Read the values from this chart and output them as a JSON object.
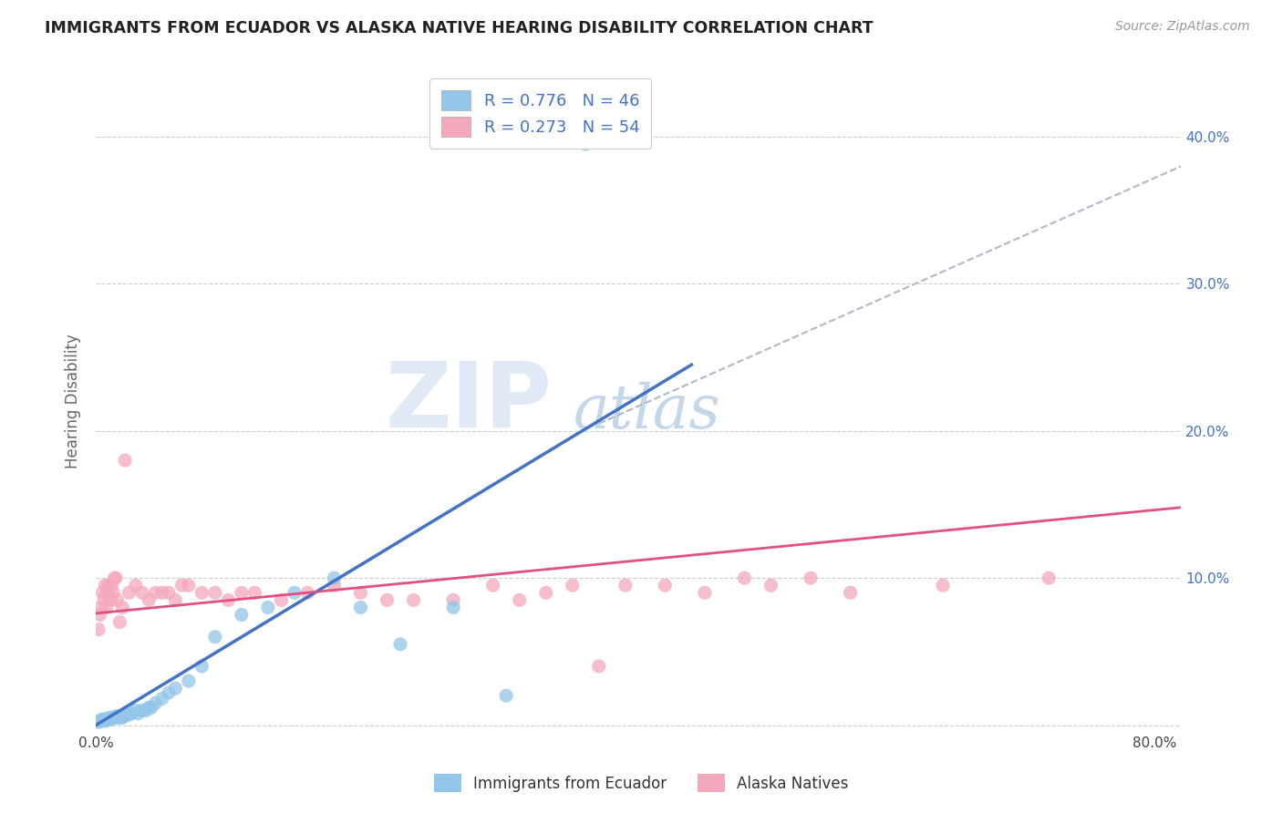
{
  "title": "IMMIGRANTS FROM ECUADOR VS ALASKA NATIVE HEARING DISABILITY CORRELATION CHART",
  "source": "Source: ZipAtlas.com",
  "ylabel": "Hearing Disability",
  "legend1_label": "R = 0.776   N = 46",
  "legend2_label": "R = 0.273   N = 54",
  "legend_bottom1": "Immigrants from Ecuador",
  "legend_bottom2": "Alaska Natives",
  "blue_color": "#93c6e8",
  "pink_color": "#f4a8bb",
  "blue_line_color": "#4472c4",
  "pink_line_color": "#e05080",
  "dashed_line_color": "#b0b8c8",
  "watermark_zip": "ZIP",
  "watermark_atlas": "atlas",
  "xlim": [
    0.0,
    0.82
  ],
  "ylim": [
    -0.005,
    0.445
  ],
  "blue_scatter_x": [
    0.002,
    0.003,
    0.004,
    0.005,
    0.006,
    0.007,
    0.008,
    0.009,
    0.01,
    0.01,
    0.011,
    0.012,
    0.013,
    0.014,
    0.015,
    0.016,
    0.017,
    0.018,
    0.019,
    0.02,
    0.021,
    0.022,
    0.025,
    0.027,
    0.03,
    0.032,
    0.035,
    0.038,
    0.04,
    0.042,
    0.045,
    0.05,
    0.055,
    0.06,
    0.07,
    0.08,
    0.09,
    0.11,
    0.13,
    0.15,
    0.18,
    0.2,
    0.23,
    0.27,
    0.31,
    0.37
  ],
  "blue_scatter_y": [
    0.002,
    0.003,
    0.003,
    0.004,
    0.003,
    0.004,
    0.003,
    0.004,
    0.005,
    0.004,
    0.004,
    0.005,
    0.005,
    0.005,
    0.006,
    0.005,
    0.006,
    0.005,
    0.006,
    0.005,
    0.006,
    0.007,
    0.007,
    0.008,
    0.01,
    0.008,
    0.01,
    0.01,
    0.012,
    0.012,
    0.015,
    0.018,
    0.022,
    0.025,
    0.03,
    0.04,
    0.06,
    0.075,
    0.08,
    0.09,
    0.1,
    0.08,
    0.055,
    0.08,
    0.02,
    0.395
  ],
  "pink_scatter_x": [
    0.002,
    0.003,
    0.004,
    0.005,
    0.006,
    0.007,
    0.008,
    0.009,
    0.01,
    0.011,
    0.012,
    0.013,
    0.014,
    0.015,
    0.016,
    0.018,
    0.02,
    0.022,
    0.025,
    0.03,
    0.035,
    0.04,
    0.045,
    0.05,
    0.055,
    0.06,
    0.065,
    0.07,
    0.08,
    0.09,
    0.1,
    0.11,
    0.12,
    0.14,
    0.16,
    0.18,
    0.2,
    0.22,
    0.24,
    0.27,
    0.3,
    0.32,
    0.34,
    0.36,
    0.38,
    0.4,
    0.43,
    0.46,
    0.49,
    0.51,
    0.54,
    0.57,
    0.64,
    0.72
  ],
  "pink_scatter_y": [
    0.065,
    0.075,
    0.08,
    0.09,
    0.085,
    0.095,
    0.08,
    0.09,
    0.095,
    0.085,
    0.095,
    0.09,
    0.1,
    0.1,
    0.085,
    0.07,
    0.08,
    0.18,
    0.09,
    0.095,
    0.09,
    0.085,
    0.09,
    0.09,
    0.09,
    0.085,
    0.095,
    0.095,
    0.09,
    0.09,
    0.085,
    0.09,
    0.09,
    0.085,
    0.09,
    0.095,
    0.09,
    0.085,
    0.085,
    0.085,
    0.095,
    0.085,
    0.09,
    0.095,
    0.04,
    0.095,
    0.095,
    0.09,
    0.1,
    0.095,
    0.1,
    0.09,
    0.095,
    0.1
  ],
  "blue_trendline_x": [
    0.0,
    0.45
  ],
  "blue_trendline_y": [
    0.0,
    0.245
  ],
  "pink_trendline_x": [
    0.0,
    0.82
  ],
  "pink_trendline_y": [
    0.076,
    0.148
  ],
  "dashed_trendline_x": [
    0.38,
    0.82
  ],
  "dashed_trendline_y": [
    0.205,
    0.38
  ],
  "yticks": [
    0.0,
    0.1,
    0.2,
    0.3,
    0.4
  ],
  "ytick_labels_right": [
    "",
    "10.0%",
    "20.0%",
    "30.0%",
    "40.0%"
  ],
  "xticks": [
    0.0,
    0.1,
    0.2,
    0.3,
    0.4,
    0.5,
    0.6,
    0.7,
    0.8
  ],
  "xtick_labels": [
    "0.0%",
    "",
    "",
    "",
    "",
    "",
    "",
    "",
    "80.0%"
  ],
  "background_color": "#ffffff",
  "grid_color": "#cccccc"
}
